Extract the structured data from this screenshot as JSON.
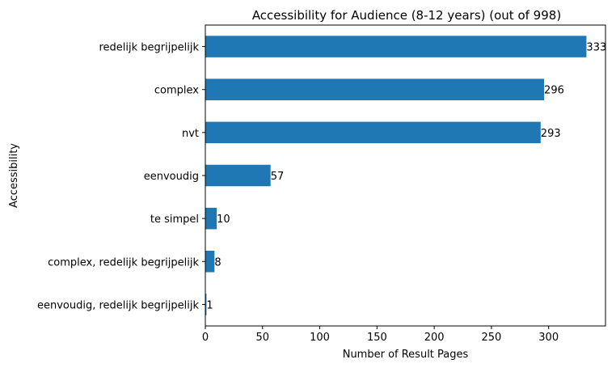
{
  "chart_data": {
    "type": "bar",
    "orientation": "horizontal",
    "title": "Accessibility for Audience (8-12 years) (out of 998)",
    "xlabel": "Number of Result Pages",
    "ylabel": "Accessibility",
    "categories": [
      "redelijk begrijpelijk",
      "complex",
      "nvt",
      "eenvoudig",
      "te simpel",
      "complex, redelijk begrijpelijk",
      "eenvoudig, redelijk begrijpelijk"
    ],
    "values": [
      333,
      296,
      293,
      57,
      10,
      8,
      1
    ],
    "data_labels": [
      "333",
      "296",
      "293",
      "57",
      "10",
      "8",
      "1"
    ],
    "xticks": [
      0,
      50,
      100,
      150,
      200,
      250,
      300
    ],
    "xtick_labels": [
      "0",
      "50",
      "100",
      "150",
      "200",
      "250",
      "300"
    ],
    "xlim": [
      0,
      349.65
    ],
    "bar_color": "#1f77b4",
    "grid": false,
    "legend": "none"
  }
}
